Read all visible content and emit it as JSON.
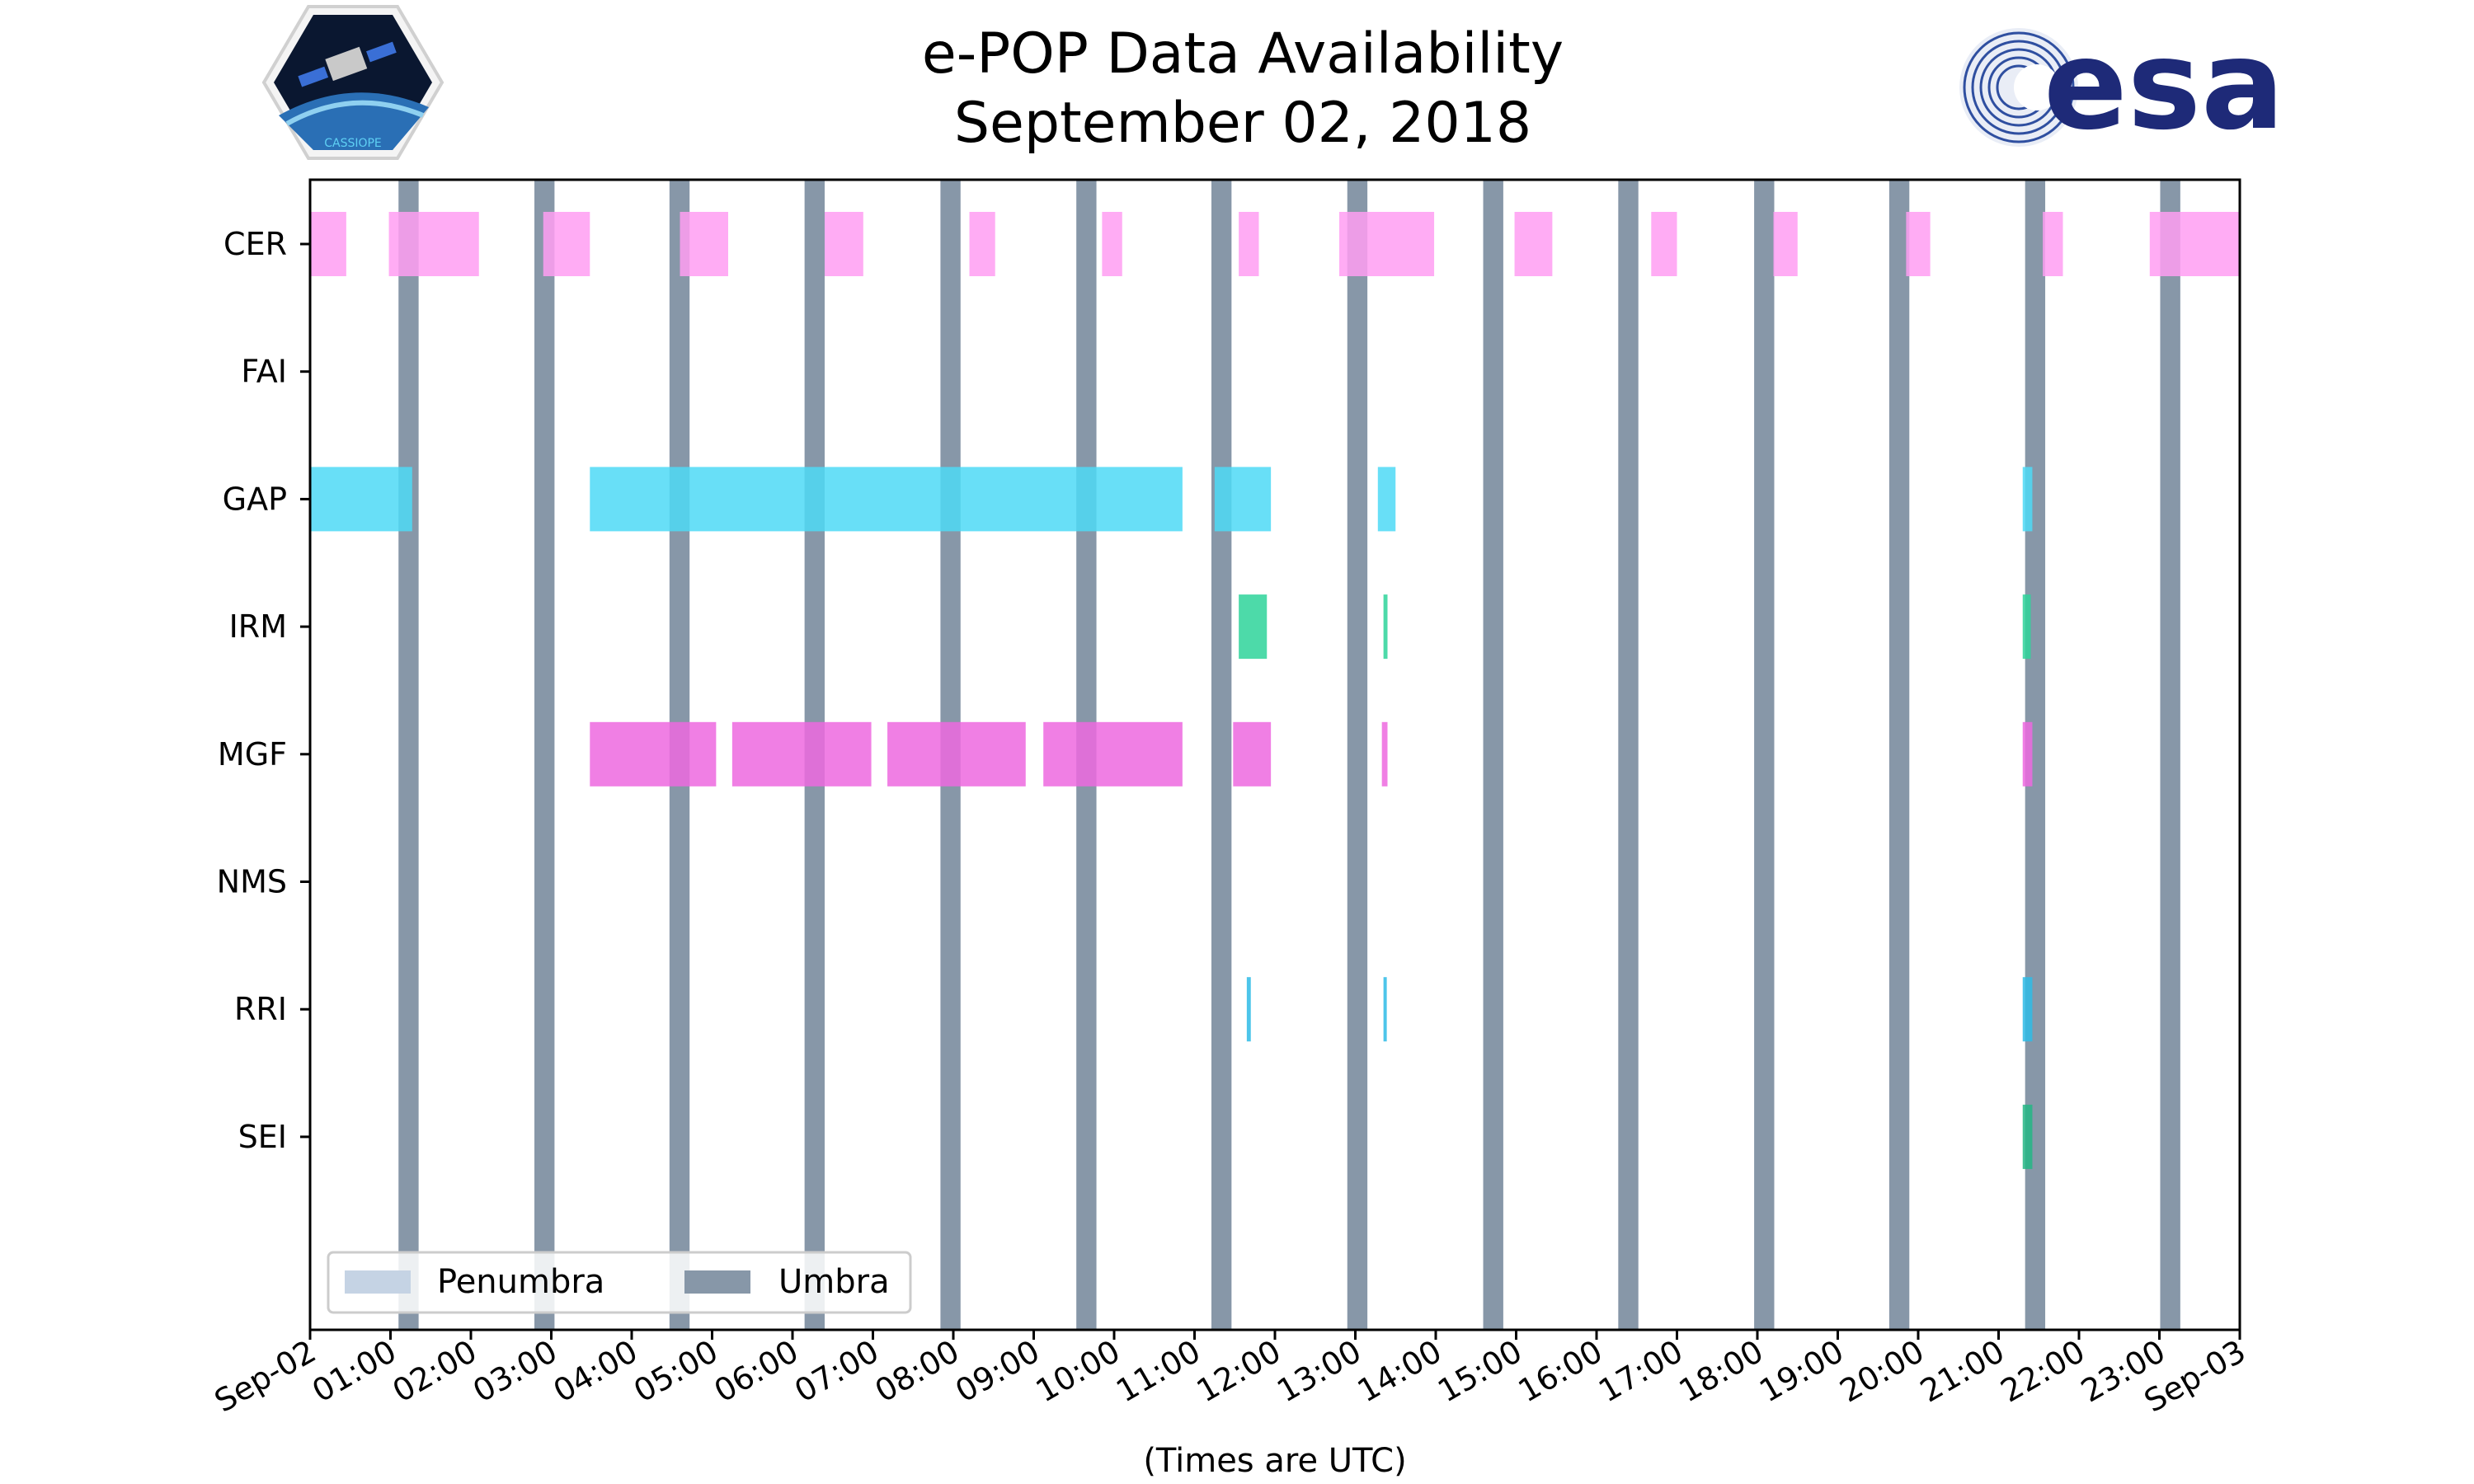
{
  "title_line1": "e-POP Data Availability",
  "title_line2": "September 02, 2018",
  "logos": {
    "left": "CASSIOPE",
    "right": "esa"
  },
  "colors": {
    "umbra": "#8797a8",
    "penumbra": "#c5d3e4",
    "CER": "#ff9ef2",
    "GAP": "#4dd9f6",
    "IRM": "#2ed39a",
    "MGF": "#ed69df",
    "RRI": "#2ebbe6",
    "SEI": "#24b685"
  },
  "chart_data": {
    "type": "timeline",
    "xlabel": "(Times are UTC)",
    "xlim_hours": [
      0,
      24
    ],
    "x_tick_labels": [
      "Sep-02",
      "01:00",
      "02:00",
      "03:00",
      "04:00",
      "05:00",
      "06:00",
      "07:00",
      "08:00",
      "09:00",
      "10:00",
      "11:00",
      "12:00",
      "13:00",
      "14:00",
      "15:00",
      "16:00",
      "17:00",
      "18:00",
      "19:00",
      "20:00",
      "21:00",
      "22:00",
      "23:00",
      "Sep-03"
    ],
    "instruments": [
      "CER",
      "FAI",
      "GAP",
      "IRM",
      "MGF",
      "NMS",
      "RRI",
      "SEI"
    ],
    "intervals": {
      "CER": [
        [
          0.0,
          0.45
        ],
        [
          0.98,
          2.1
        ],
        [
          2.9,
          3.48
        ],
        [
          4.6,
          5.2
        ],
        [
          6.4,
          6.88
        ],
        [
          8.2,
          8.52
        ],
        [
          9.85,
          10.1
        ],
        [
          11.55,
          11.8
        ],
        [
          12.8,
          13.98
        ],
        [
          14.98,
          15.45
        ],
        [
          16.68,
          17.0
        ],
        [
          18.2,
          18.5
        ],
        [
          19.85,
          20.15
        ],
        [
          21.55,
          21.8
        ],
        [
          22.88,
          24.0
        ]
      ],
      "FAI": [],
      "GAP": [
        [
          0.0,
          1.27
        ],
        [
          3.48,
          10.85
        ],
        [
          11.25,
          11.95
        ],
        [
          13.28,
          13.5
        ],
        [
          21.3,
          21.42
        ]
      ],
      "IRM": [
        [
          11.55,
          11.9
        ],
        [
          13.35,
          13.4
        ],
        [
          21.3,
          21.4
        ]
      ],
      "MGF": [
        [
          3.48,
          5.05
        ],
        [
          5.25,
          6.98
        ],
        [
          7.18,
          8.9
        ],
        [
          9.12,
          10.85
        ],
        [
          11.48,
          11.95
        ],
        [
          13.33,
          13.4
        ],
        [
          21.3,
          21.42
        ]
      ],
      "NMS": [],
      "RRI": [
        [
          11.65,
          11.7
        ],
        [
          13.35,
          13.38
        ],
        [
          21.3,
          21.42
        ]
      ],
      "SEI": [
        [
          21.3,
          21.42
        ]
      ]
    },
    "umbra": [
      [
        1.1,
        1.35
      ],
      [
        2.79,
        3.04
      ],
      [
        4.47,
        4.72
      ],
      [
        6.15,
        6.4
      ],
      [
        7.84,
        8.09
      ],
      [
        9.53,
        9.78
      ],
      [
        11.21,
        11.46
      ],
      [
        12.9,
        13.15
      ],
      [
        14.59,
        14.84
      ],
      [
        16.27,
        16.52
      ],
      [
        17.96,
        18.21
      ],
      [
        19.64,
        19.89
      ],
      [
        21.33,
        21.58
      ],
      [
        23.01,
        23.26
      ]
    ],
    "penumbra": [],
    "legend": [
      "Penumbra",
      "Umbra"
    ],
    "legend_position": "lower-left"
  }
}
